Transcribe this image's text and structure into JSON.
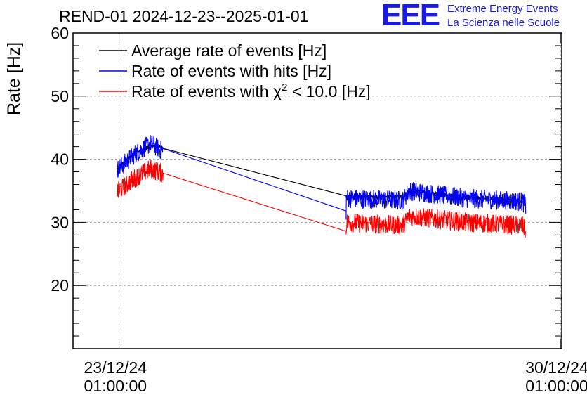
{
  "chart_data": {
    "type": "line",
    "title": "REND-01 2024-12-23--2025-01-01",
    "ylabel": "Rate [Hz]",
    "xlabel": "",
    "ylim": [
      10,
      60
    ],
    "yticks": [
      20,
      30,
      40,
      50,
      60
    ],
    "x_unit": "days since 23/12/24 01:00:00",
    "xlim": [
      -0.73,
      7.02
    ],
    "xticks": [
      {
        "x": 0,
        "date": "23/12/24",
        "time": "01:00:00"
      },
      {
        "x": 7,
        "date": "30/12/24",
        "time": "01:00:00"
      }
    ],
    "grid": true,
    "legend_position": "top-left",
    "series": [
      {
        "name": "Average rate of events [Hz]",
        "color": "#000000",
        "x": [
          -0.03,
          0.25,
          0.5,
          0.7,
          3.6,
          3.6,
          4.5,
          4.6,
          5.5,
          6.4,
          6.45
        ],
        "values": [
          38.5,
          41.0,
          42.0,
          42.0,
          34.2,
          34.0,
          34.0,
          35.0,
          34.0,
          33.5,
          32.5
        ]
      },
      {
        "name": "Rate of events with hits [Hz]",
        "color": "#0000ff",
        "x": [
          -0.03,
          0.25,
          0.5,
          0.7,
          3.6,
          3.6,
          4.5,
          4.6,
          5.5,
          6.4,
          6.45
        ],
        "values": [
          38.3,
          40.8,
          42.5,
          41.2,
          31.8,
          33.8,
          33.5,
          35.0,
          33.8,
          33.3,
          32.5
        ]
      },
      {
        "name": "Rate of events with χ² < 10.0 [Hz]",
        "color": "#ff0000",
        "x": [
          -0.03,
          0.25,
          0.5,
          0.7,
          3.6,
          3.6,
          4.5,
          4.6,
          5.5,
          6.4,
          6.45
        ],
        "values": [
          34.8,
          37.0,
          38.5,
          37.7,
          28.6,
          30.0,
          29.5,
          31.0,
          30.0,
          29.5,
          28.5
        ]
      }
    ],
    "legend": [
      {
        "prefix": "Average rate of events [Hz]",
        "sup": "",
        "suffix": ""
      },
      {
        "prefix": "Rate of events with hits [Hz]",
        "sup": "",
        "suffix": ""
      },
      {
        "prefix": "Rate of events with χ",
        "sup": "2",
        "suffix": " < 10.0 [Hz]"
      }
    ]
  },
  "logo": {
    "mark": "EEE",
    "line1": "Extreme Energy Events",
    "line2": "La Scienza nelle Scuole",
    "color": "#1a1ae6"
  }
}
